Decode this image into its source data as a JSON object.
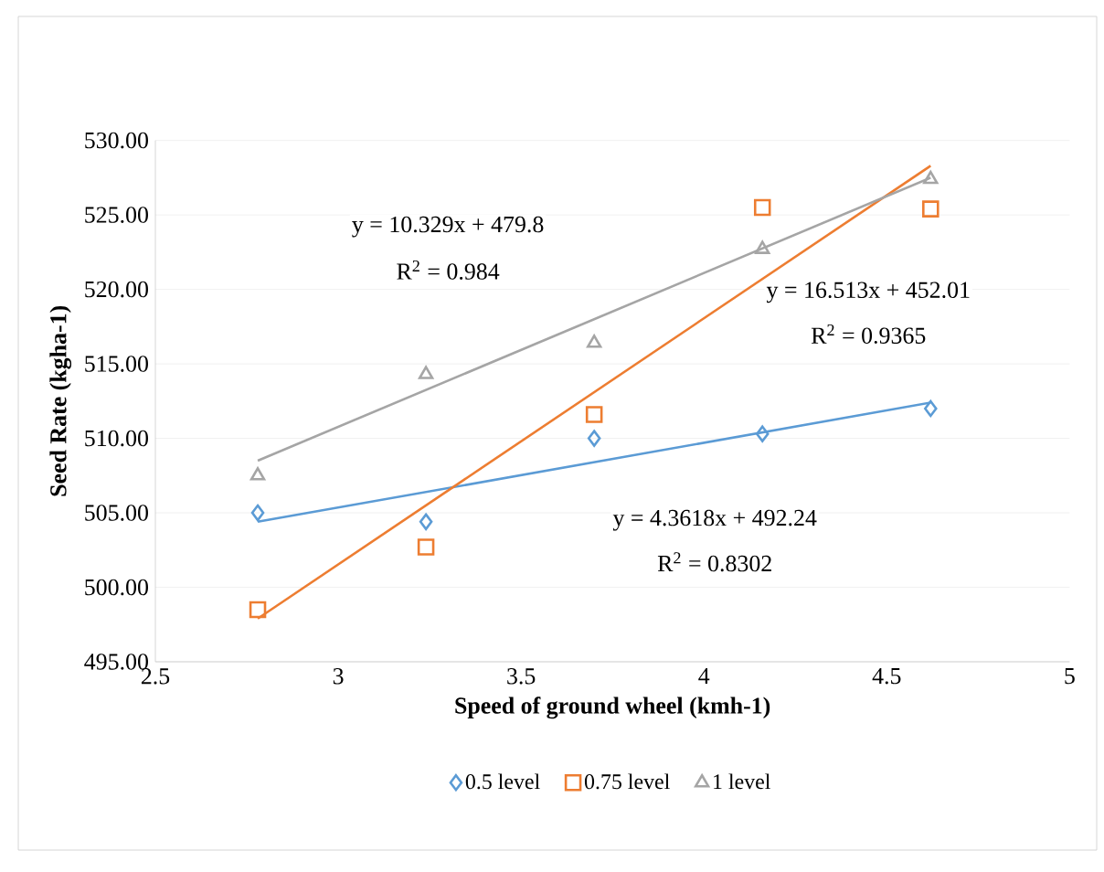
{
  "chart_data": {
    "type": "scatter",
    "xlabel": "Speed of ground wheel (kmh-1)",
    "ylabel": "Seed Rate (kgha-1)",
    "xlim": [
      2.5,
      5
    ],
    "xticks": [
      2.5,
      3,
      3.5,
      4,
      4.5,
      5
    ],
    "ylim": [
      495,
      530
    ],
    "yticks": [
      {
        "value": 495,
        "label": "495.00"
      },
      {
        "value": 500,
        "label": "500.00"
      },
      {
        "value": 505,
        "label": "505.00"
      },
      {
        "value": 510,
        "label": "510.00"
      },
      {
        "value": 515,
        "label": "515.00"
      },
      {
        "value": 520,
        "label": "520.00"
      },
      {
        "value": 525,
        "label": "525.00"
      },
      {
        "value": 530,
        "label": "530.00"
      }
    ],
    "grid": "y",
    "legend": "bottom",
    "series": [
      {
        "name": "0.5 level",
        "marker": "diamond",
        "color": "#5b9bd5",
        "x": [
          2.78,
          3.24,
          3.7,
          4.16,
          4.62
        ],
        "values": [
          505.0,
          504.4,
          510.0,
          510.3,
          512.0
        ]
      },
      {
        "name": "0.75 level",
        "marker": "square",
        "color": "#ed7d31",
        "x": [
          2.78,
          3.24,
          3.7,
          4.16,
          4.62
        ],
        "values": [
          498.5,
          502.7,
          511.6,
          525.5,
          525.4
        ]
      },
      {
        "name": "1 level",
        "marker": "triangle",
        "color": "#a5a5a5",
        "x": [
          2.78,
          3.24,
          3.7,
          4.16,
          4.62
        ],
        "values": [
          507.5,
          514.3,
          516.4,
          522.7,
          527.4
        ]
      },
      {
        "type": "line",
        "marker": "none",
        "color": "#5b9bd5",
        "x": [
          2.78,
          4.62
        ],
        "values": [
          504.4,
          512.4
        ]
      },
      {
        "type": "line",
        "marker": "none",
        "color": "#ed7d31",
        "x": [
          2.78,
          4.62
        ],
        "values": [
          497.9,
          528.3
        ]
      },
      {
        "type": "line",
        "marker": "none",
        "color": "#a5a5a5",
        "x": [
          2.78,
          4.62
        ],
        "values": [
          508.5,
          527.5
        ]
      }
    ],
    "annotations": [
      "y = 10.329x + 479.8",
      "R$^{2}$ = 0.984",
      "y = 16.513x + 452.01",
      "R$^{2}$ = 0.9365",
      "y = 4.3618x + 492.24",
      "R$^{2}$ = 0.8302"
    ]
  }
}
